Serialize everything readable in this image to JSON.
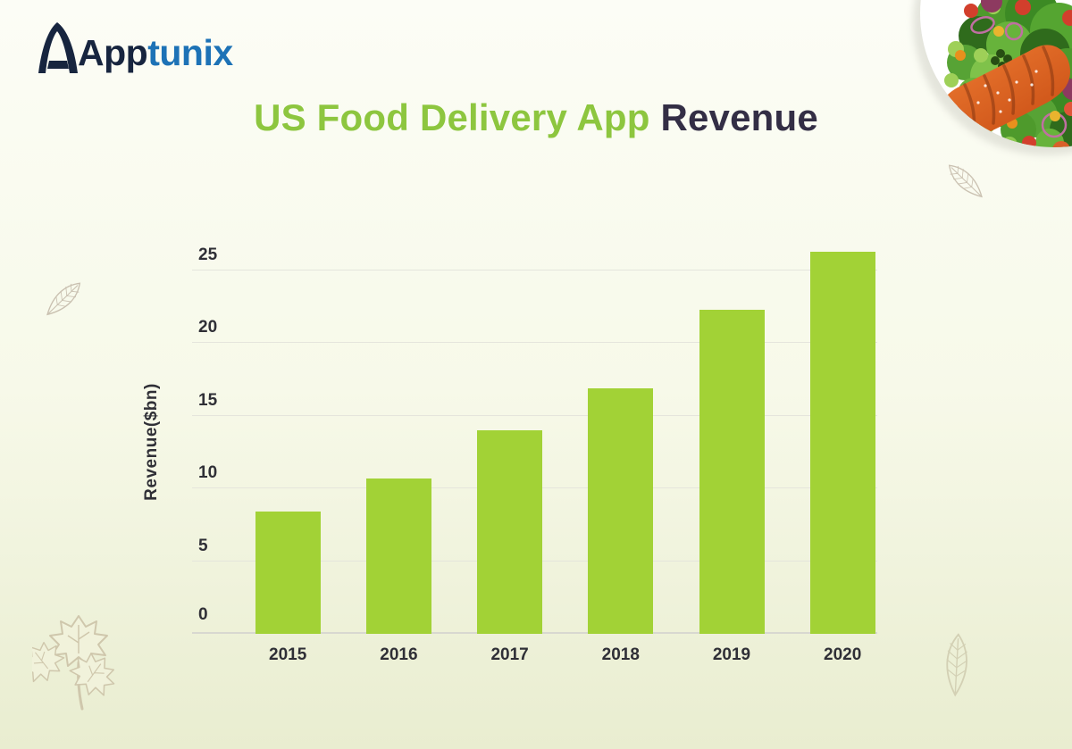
{
  "brand": {
    "logo_part1": "App",
    "logo_part2": "tunix",
    "color_dark": "#17253f",
    "color_blue": "#1d72b6"
  },
  "title": {
    "highlight": "US Food Delivery App",
    "rest": " Revenue",
    "highlight_color": "#8dc63f",
    "rest_color": "#332e45"
  },
  "chart_data": {
    "type": "bar",
    "title": "US Food Delivery App Revenue",
    "categories": [
      "2015",
      "2016",
      "2017",
      "2018",
      "2019",
      "2020"
    ],
    "values": [
      8.4,
      10.7,
      14,
      16.9,
      22.3,
      26.3
    ],
    "xlabel": "",
    "ylabel": "Revenue($bn)",
    "yticks": [
      0,
      5,
      10,
      15,
      20,
      25
    ],
    "ylim": [
      0,
      27
    ],
    "grid": true,
    "legend": "none",
    "bar_color": "#a2d236",
    "gridline_color": "#e5e5dc",
    "baseline_color": "#d8d8d0"
  },
  "decor": {
    "food_photo": "salmon-salad-plate-photo",
    "leaves": [
      "leaf-left-icon",
      "leaf-top-right-icon",
      "parsley-bottom-left-icon",
      "leaf-bottom-right-icon"
    ]
  }
}
